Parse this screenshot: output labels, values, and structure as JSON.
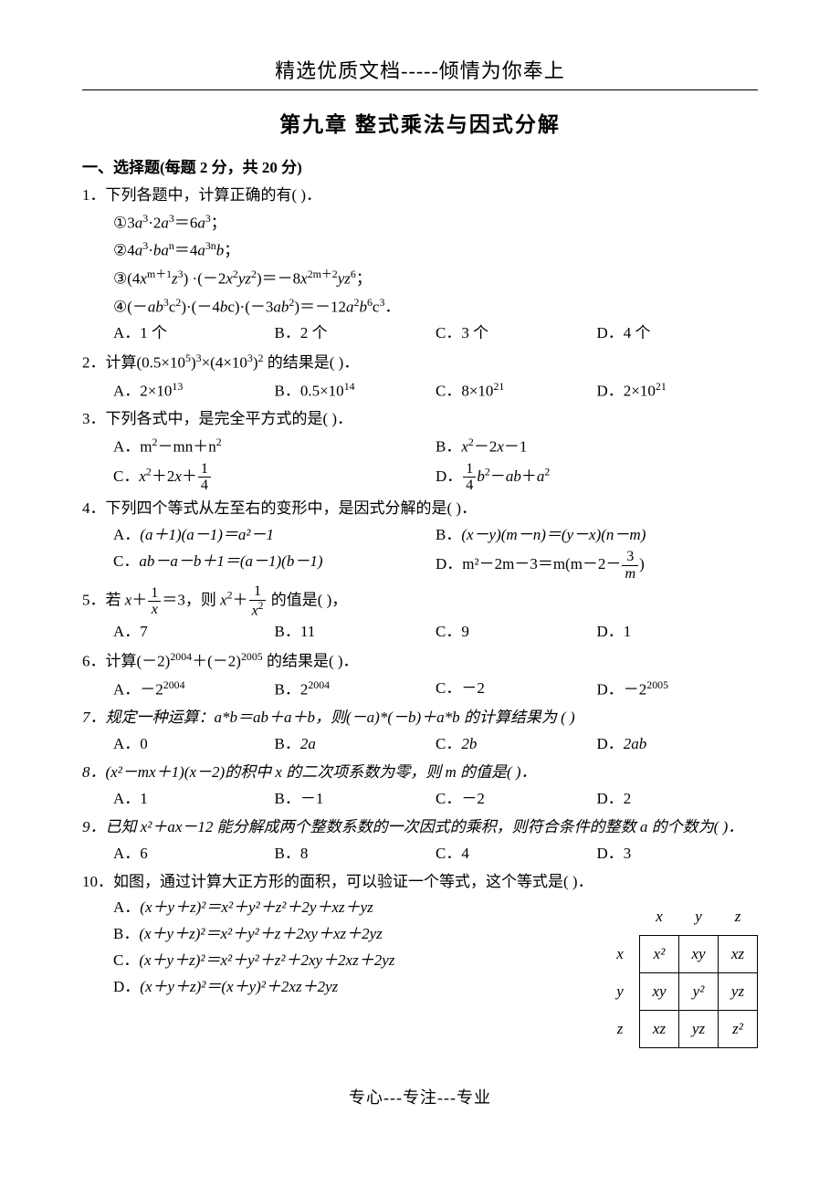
{
  "header": "精选优质文档-----倾情为你奉上",
  "title": "第九章  整式乘法与因式分解",
  "section_heading": "一、选择题(每题 2 分，共 20 分)",
  "footer": "专心---专注---专业",
  "labels": {
    "A": "A．",
    "B": "B．",
    "C": "C．",
    "D": "D．"
  },
  "q1": {
    "stem": "1．下列各题中，计算正确的有(     )．",
    "items": {
      "i1_pre": "①3",
      "i1_exp": "3",
      "i1_mid": "·2",
      "i1_exp2": "3",
      "i1_post": "＝6",
      "i1_exp3": "3",
      "i1_end": "；",
      "i2_pre": "②4",
      "i2_exp": "3",
      "i2_mid": "·",
      "i2_n": "n",
      "i2_post": "＝4",
      "i2_exp2": "3n",
      "i2_end": "；",
      "i3_pre": "③(4",
      "i3_exp1": "m＋1",
      "i3_z": "3",
      "i3_mid": ") ·(－2",
      "i3_x2": "2",
      "i3_z2": "2",
      "i3_eq": ")＝－8",
      "i3_xres": "2m＋2",
      "i3_zres": "6",
      "i3_end": "；",
      "i4_pre": "④(－",
      "i4_b3": "3",
      "i4_c2": "2",
      "i4_mid1": ")·(－4",
      "i4_mid2": "c)·(－3",
      "i4_ab2": "2",
      "i4_eq": ")＝－12",
      "i4_a2": "2",
      "i4_b6": "6",
      "i4_c3": "3",
      "i4_end": "．"
    },
    "opts": {
      "A": "1 个",
      "B": "2 个",
      "C": "3 个",
      "D": "4 个"
    }
  },
  "q2": {
    "stem_pre": "2．计算(0.5×10",
    "e1": "5",
    "stem_mid1": ")",
    "e2": "3",
    "stem_mid2": "×(4×10",
    "e3": "3",
    "stem_mid3": ")",
    "e4": "2",
    "stem_post": " 的结果是(     )．",
    "opts": {
      "A_pre": "2×10",
      "A_exp": "13",
      "B_pre": "0.5×10",
      "B_exp": "14",
      "C_pre": "8×10",
      "C_exp": "21",
      "D_pre": "2×10",
      "D_exp": "21"
    }
  },
  "q3": {
    "stem": "3．下列各式中，是完全平方式的是(     )．",
    "opts": {
      "A_pre": "m",
      "A_e1": "2",
      "A_mid": "－mn＋n",
      "A_e2": "2",
      "B_var": "x",
      "B_e1": "2",
      "B_mid": "－2",
      "B_end": "－1",
      "C_var": "x",
      "C_e1": "2",
      "C_mid": "＋2",
      "C_plus": "＋",
      "C_num": "1",
      "C_den": "4",
      "D_num": "1",
      "D_den": "4",
      "D_var": "b",
      "D_e1": "2",
      "D_mid": "－",
      "D_ab": "ab",
      "D_plus": "＋",
      "D_a": "a",
      "D_e2": "2"
    }
  },
  "q4": {
    "stem": "4．下列四个等式从左至右的变形中，是因式分解的是(     )．",
    "opts": {
      "A": "(a＋1)(a－1)＝a²－1",
      "B": "(x－y)(m－n)＝(y－x)(n－m)",
      "C": "ab－a－b＋1＝(a－1)(b－1)",
      "D_pre": "m²－2m－3＝m(m－2－",
      "D_num": "3",
      "D_den": "m",
      "D_post": ")"
    }
  },
  "q5": {
    "stem_pre": "5．若 ",
    "x": "x",
    "plus1": "＋",
    "num1": "1",
    "den1": "x",
    "eq": "＝3，则 ",
    "x2": "x",
    "e2": "2",
    "plus2": "＋",
    "num2": "1",
    "den2_pre": "x",
    "den2_e": "2",
    "stem_post": " 的值是(     )，",
    "opts": {
      "A": "7",
      "B": "11",
      "C": "9",
      "D": "1"
    }
  },
  "q6": {
    "stem_pre": "6．计算(－2)",
    "e1": "2004",
    "mid": "＋(－2)",
    "e2": "2005",
    "stem_post": " 的结果是(     )．",
    "opts": {
      "A_pre": "－2",
      "A_exp": "2004",
      "B_pre": "2",
      "B_exp": "2004",
      "C": "－2",
      "D_pre": "－2",
      "D_exp": "2005"
    }
  },
  "q7": {
    "stem": "7．规定一种运算：a*b＝ab＋a＋b，则(－a)*(－b)＋a*b 的计算结果为   (     )",
    "opts": {
      "A": "0",
      "B": "2a",
      "C": "2b",
      "D": "2ab"
    }
  },
  "q8": {
    "stem": "8．(x²－mx＋1)(x－2)的积中 x 的二次项系数为零，则 m 的值是(     )．",
    "opts": {
      "A": "1",
      "B": "－1",
      "C": "－2",
      "D": "2"
    }
  },
  "q9": {
    "stem": "9．已知 x²＋ax－12 能分解成两个整数系数的一次因式的乘积，则符合条件的整数 a 的个数为(     )．",
    "opts": {
      "A": "6",
      "B": "8",
      "C": "4",
      "D": "3"
    }
  },
  "q10": {
    "stem": "10．如图，通过计算大正方形的面积，可以验证一个等式，这个等式是(     )．",
    "opts": {
      "A": "(x＋y＋z)²＝x²＋y²＋z²＋2y＋xz＋yz",
      "B": "(x＋y＋z)²＝x²＋y²＋z＋2xy＋xz＋2yz",
      "C": "(x＋y＋z)²＝x²＋y²＋z²＋2xy＋2xz＋2yz",
      "D": "(x＋y＋z)²＝(x＋y)²＋2xz＋2yz"
    },
    "grid": {
      "headers": [
        "x",
        "y",
        "z"
      ],
      "rows": [
        [
          "x",
          "x²",
          "xy",
          "xz"
        ],
        [
          "y",
          "xy",
          "y²",
          "yz"
        ],
        [
          "z",
          "xz",
          "yz",
          "z²"
        ]
      ]
    }
  }
}
